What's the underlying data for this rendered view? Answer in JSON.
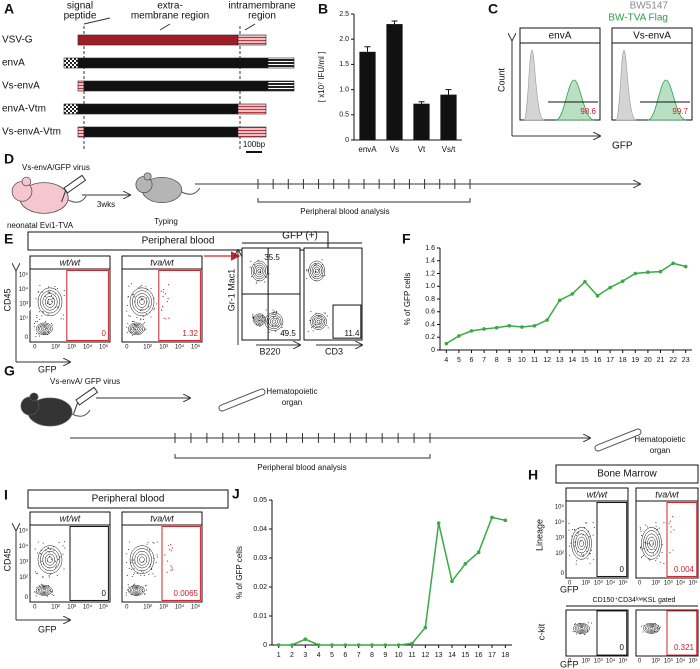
{
  "panel_a": {
    "letter": "A",
    "signal_peptide": [
      "signal",
      "peptide"
    ],
    "extra_membrane": [
      "extra-",
      "membrane region"
    ],
    "intramembrane": [
      "intramembrane",
      "region"
    ],
    "constructs": [
      "VSV-G",
      "envA",
      "Vs-envA",
      "envA-Vtm",
      "Vs-envA-Vtm"
    ],
    "scale": "100bp"
  },
  "panel_b": {
    "letter": "B"
  },
  "panel_c": {
    "letter": "C",
    "legend": [
      "BW5147",
      "BW-TVA Flag"
    ],
    "legend_colors": [
      "#8a8a8a",
      "#2e9e47"
    ],
    "plots": [
      {
        "title": "envA",
        "value": 98.6
      },
      {
        "title": "Vs-envA",
        "value": 99.7
      }
    ],
    "y_label": "Count",
    "x_label": "GFP"
  },
  "panel_d": {
    "letter": "D",
    "virus": "Vs-envA/GFP virus",
    "mouse": "neonatal Evi1-TVA",
    "interval": "3wks",
    "typing": "Typing",
    "analysis": "Peripheral blood analysis"
  },
  "panel_e": {
    "letter": "E",
    "header": "Peripheral blood",
    "plots": [
      {
        "title": "wt/wt",
        "value": 0
      },
      {
        "title": "tva/wt",
        "value": 1.32
      }
    ],
    "y_label": "CD45",
    "x_label": "GFP",
    "gfp_header": "GFP (+)",
    "sub_y_label": "Gr-1 Mac1",
    "sub_x_labels": [
      "B220",
      "CD3"
    ],
    "sub_values": [
      35.5,
      49.5,
      11.4
    ]
  },
  "panel_f": {
    "letter": "F"
  },
  "panel_g": {
    "letter": "G",
    "virus": "Vs-envA/ GFP virus",
    "organs": [
      [
        "Hematopoietic",
        "organ"
      ],
      [
        "Hematopoietic",
        "organ"
      ]
    ],
    "analysis": "Peripheral blood analysis"
  },
  "panel_h": {
    "letter": "H",
    "header": "Bone Marrow",
    "plots": [
      {
        "title": "wt/wt",
        "value": 0
      },
      {
        "title": "tva/wt",
        "value": 0.004
      }
    ],
    "y_label": "Lineage",
    "x_label": "GFP",
    "gate_label": "CD150⁺CD34ˡᵒʷKSL gated",
    "gated_values": [
      0,
      0.321
    ],
    "gated_y_label": "c-kit",
    "gated_x_label": "GFP"
  },
  "panel_i": {
    "letter": "I",
    "header": "Peripheral blood",
    "plots": [
      {
        "title": "wt/wt",
        "value": 0
      },
      {
        "title": "tva/wt",
        "value": 0.0065
      }
    ],
    "y_label": "CD45",
    "x_label": "GFP"
  },
  "panel_j": {
    "letter": "J"
  },
  "flow_ticks": [
    "0",
    "10²",
    "10³",
    "10⁴",
    "10⁵"
  ],
  "chart_data": [
    {
      "type": "bar",
      "y_label": "[ x10⁷ IFU/ml ]",
      "categories": [
        "envA",
        "Vs",
        "Vt",
        "Vs/t"
      ],
      "values": [
        1.75,
        2.3,
        0.72,
        0.9
      ],
      "errors": [
        0.1,
        0.06,
        0.04,
        0.1
      ],
      "color": "#111111",
      "ylim": [
        0,
        2.5
      ],
      "yticks": [
        0,
        0.5,
        {
          "value": 1,
          "label": "1.0"
        },
        1.5,
        {
          "value": 2,
          "label": "2.0"
        },
        2.5
      ]
    },
    {
      "type": "line",
      "y_label": "% of GFP cells",
      "x": [
        4,
        5,
        6,
        7,
        8,
        9,
        10,
        11,
        12,
        13,
        14,
        15,
        16,
        17,
        18,
        19,
        20,
        21,
        22,
        23
      ],
      "values": [
        0.1,
        0.22,
        0.3,
        0.33,
        0.35,
        0.38,
        0.36,
        0.38,
        0.47,
        0.78,
        0.88,
        1.07,
        0.85,
        0.98,
        1.08,
        1.2,
        1.22,
        1.23,
        1.36,
        1.31
      ],
      "color": "#3aa845",
      "xlim": [
        3.5,
        23.5
      ],
      "ylim": [
        0,
        1.6
      ],
      "yticks": [
        0,
        0.2,
        0.4,
        0.6,
        0.8,
        {
          "value": 1,
          "label": "1.0"
        },
        1.2,
        1.4,
        1.6
      ]
    },
    {
      "type": "line",
      "y_label": "% of GFP cells",
      "x": [
        1,
        2,
        3,
        4,
        5,
        6,
        7,
        8,
        9,
        10,
        11,
        12,
        13,
        14,
        15,
        16,
        17,
        18
      ],
      "values": [
        0,
        0,
        0.002,
        0,
        0,
        0,
        0,
        0,
        0,
        0,
        0.0005,
        0.006,
        0.042,
        0.022,
        0.028,
        0.032,
        0.044,
        0.043
      ],
      "color": "#3aa845",
      "xlim": [
        0.5,
        18.5
      ],
      "ylim": [
        0,
        0.05
      ],
      "yticks": [
        0,
        0.01,
        0.02,
        0.03,
        0.04,
        0.05
      ]
    }
  ]
}
